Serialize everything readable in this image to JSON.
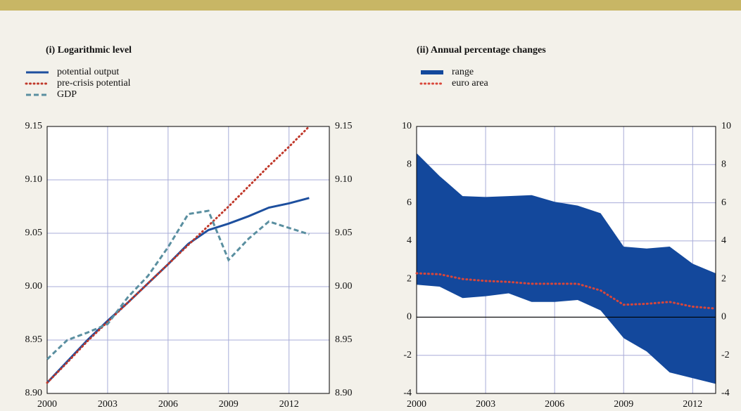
{
  "chart_data": [
    {
      "type": "line",
      "title": "(i) Logarithmic level",
      "x": [
        2000,
        2001,
        2002,
        2003,
        2004,
        2005,
        2006,
        2007,
        2008,
        2009,
        2010,
        2011,
        2012,
        2013
      ],
      "series": [
        {
          "name": "potential output",
          "color": "#1d4f9e",
          "dash": "solid",
          "values": [
            8.91,
            8.93,
            8.95,
            8.968,
            8.985,
            9.003,
            9.021,
            9.04,
            9.053,
            9.059,
            9.066,
            9.074,
            9.078,
            9.083
          ]
        },
        {
          "name": "pre-crisis potential",
          "color": "#c0392b",
          "dash": "dotted",
          "values": [
            8.91,
            8.929,
            8.949,
            8.967,
            8.985,
            9.003,
            9.021,
            9.039,
            9.057,
            9.075,
            9.094,
            9.113,
            9.131,
            9.15
          ]
        },
        {
          "name": "GDP",
          "color": "#5a8fa0",
          "dash": "dashed",
          "values": [
            8.932,
            8.95,
            8.957,
            8.965,
            8.99,
            9.01,
            9.037,
            9.068,
            9.071,
            9.025,
            9.045,
            9.061,
            9.055,
            9.049
          ]
        }
      ],
      "xlim": [
        2000,
        2014
      ],
      "xticks": [
        2000,
        2003,
        2006,
        2009,
        2012
      ],
      "ylim": [
        8.9,
        9.15
      ],
      "yticks": [
        {
          "value": 8.9,
          "label": "8.90"
        },
        8.95,
        {
          "value": 9.0,
          "label": "9.00"
        },
        9.05,
        {
          "value": 9.1,
          "label": "9.10"
        },
        9.15
      ],
      "grid": true
    },
    {
      "type": "band",
      "title": "(ii) Annual percentage changes",
      "x": [
        2000,
        2001,
        2002,
        2003,
        2004,
        2005,
        2006,
        2007,
        2008,
        2009,
        2010,
        2011,
        2012,
        2013
      ],
      "series": [
        {
          "name": "range",
          "color": "#13489c",
          "high": [
            8.6,
            7.4,
            6.35,
            6.3,
            6.35,
            6.4,
            6.05,
            5.85,
            5.45,
            3.7,
            3.6,
            3.7,
            2.8,
            2.3
          ],
          "low": [
            1.7,
            1.6,
            1.0,
            1.1,
            1.25,
            0.8,
            0.8,
            0.9,
            0.35,
            -1.1,
            -1.8,
            -2.9,
            -3.2,
            -3.5
          ]
        },
        {
          "name": "euro area",
          "color": "#d9463a",
          "dash": "dotted",
          "values": [
            2.3,
            2.25,
            2.0,
            1.9,
            1.85,
            1.75,
            1.75,
            1.75,
            1.4,
            0.65,
            0.7,
            0.8,
            0.55,
            0.45
          ]
        }
      ],
      "xlim": [
        2000,
        2013
      ],
      "xticks": [
        2000,
        2003,
        2006,
        2009,
        2012
      ],
      "ylim": [
        -4,
        10
      ],
      "yticks": [
        -4,
        -2,
        0,
        2,
        4,
        6,
        8,
        10
      ],
      "grid": true,
      "zero_line": true
    }
  ]
}
